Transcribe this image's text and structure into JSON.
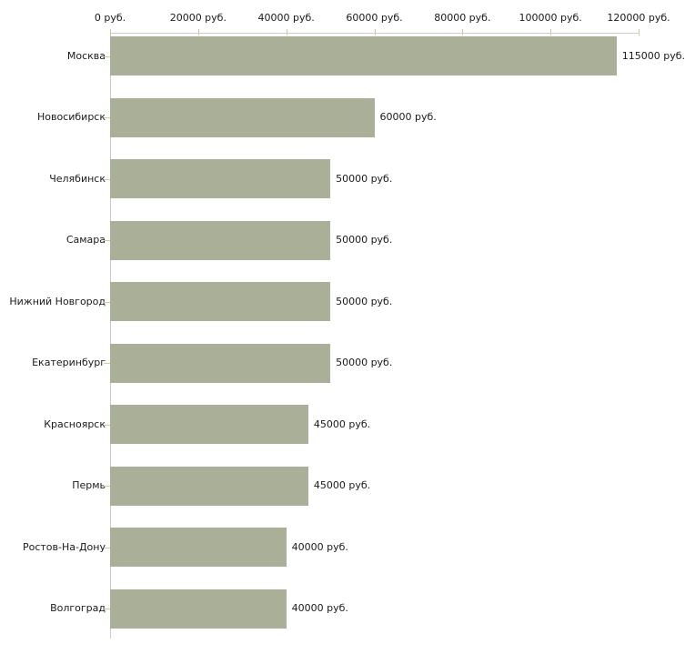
{
  "chart_data": {
    "type": "bar",
    "orientation": "horizontal",
    "title": "",
    "xlabel": "",
    "ylabel": "",
    "unit": "руб.",
    "categories": [
      "Москва",
      "Новосибирск",
      "Челябинск",
      "Самара",
      "Нижний Новгород",
      "Екатеринбург",
      "Красноярск",
      "Пермь",
      "Ростов-На-Дону",
      "Волгоград"
    ],
    "values": [
      115000,
      60000,
      50000,
      50000,
      50000,
      50000,
      45000,
      45000,
      40000,
      40000
    ],
    "value_labels": [
      "115000 руб.",
      "60000 руб.",
      "50000 руб.",
      "50000 руб.",
      "50000 руб.",
      "50000 руб.",
      "45000 руб.",
      "45000 руб.",
      "40000 руб.",
      "40000 руб."
    ],
    "x_axis": {
      "position": "top",
      "range": [
        0,
        120000
      ],
      "tick_values": [
        0,
        20000,
        40000,
        60000,
        80000,
        100000,
        120000
      ],
      "tick_labels": [
        "0 руб.",
        "20000 руб.",
        "40000 руб.",
        "60000 руб.",
        "80000 руб.",
        "100000 руб.",
        "120000 руб."
      ]
    },
    "grid": false,
    "legend": false,
    "colors": {
      "bar": "#aab097",
      "axis_line": "#cccccc",
      "tick_mark": "#cccc99",
      "text": "#1a1a1a",
      "background": "#ffffff"
    }
  }
}
